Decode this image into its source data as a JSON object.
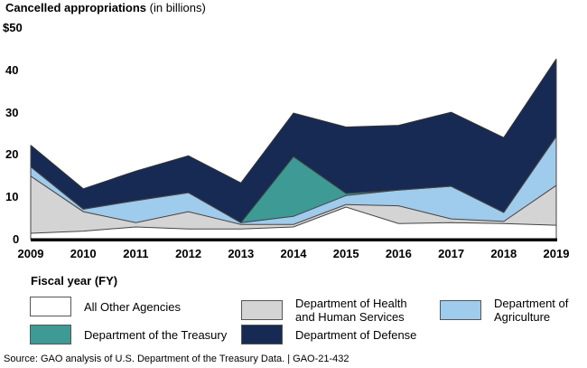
{
  "chart_data": {
    "type": "area",
    "stacked": true,
    "title": "Cancelled appropriations",
    "title_suffix": "(in billions)",
    "xlabel": "Fiscal year (FY)",
    "ylabel": "",
    "ylim": [
      0,
      50
    ],
    "yticks": [
      0,
      10,
      20,
      30,
      40,
      50
    ],
    "ytick_labels": [
      "0",
      "10",
      "20",
      "30",
      "40",
      "$50"
    ],
    "x": [
      "2009",
      "2010",
      "2011",
      "2012",
      "2013",
      "2014",
      "2015",
      "2016",
      "2017",
      "2018",
      "2019"
    ],
    "legend_position": "bottom",
    "series": [
      {
        "name": "All Other Agencies",
        "color": "#ffffff",
        "values": [
          1.5,
          2.0,
          3.0,
          2.5,
          2.5,
          3.0,
          7.7,
          3.8,
          4.0,
          3.8,
          3.4
        ]
      },
      {
        "name": "Department of Health and Human Services",
        "color": "#d4d4d4",
        "values": [
          13.5,
          4.6,
          1.0,
          4.1,
          1.1,
          0.6,
          0.6,
          4.2,
          0.9,
          0.5,
          9.4
        ]
      },
      {
        "name": "Department of Agriculture",
        "color": "#9fcbec",
        "values": [
          2.2,
          0.6,
          5.2,
          4.5,
          0.4,
          1.9,
          2.1,
          3.7,
          7.7,
          2.1,
          11.6
        ]
      },
      {
        "name": "Department of the Treasury",
        "color": "#3d9a94",
        "values": [
          0,
          0,
          0,
          0,
          0,
          14.1,
          0.5,
          0,
          0,
          0,
          0
        ]
      },
      {
        "name": "Department of Defense",
        "color": "#172a53",
        "values": [
          5.1,
          4.8,
          7.0,
          8.7,
          9.4,
          10.3,
          15.7,
          15.3,
          17.5,
          17.7,
          18.3
        ]
      }
    ]
  },
  "legend": {
    "items": [
      {
        "label_lines": [
          "All Other Agencies"
        ]
      },
      {
        "label_lines": [
          "Department of Health",
          "and Human Services"
        ]
      },
      {
        "label_lines": [
          "Department of",
          "Agriculture"
        ]
      },
      {
        "label_lines": [
          "Department of the Treasury"
        ]
      },
      {
        "label_lines": [
          "Department of Defense"
        ]
      }
    ]
  },
  "footer": {
    "source": "Source: GAO analysis of U.S. Department of the Treasury Data.  |  GAO-21-432"
  }
}
